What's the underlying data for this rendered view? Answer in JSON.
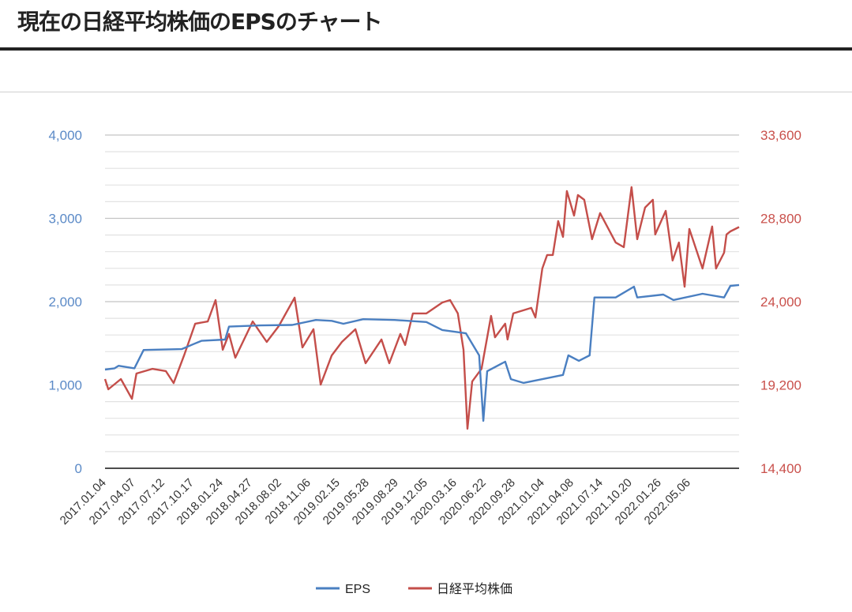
{
  "header": {
    "title": "現在の日経平均株価のEPSのチャート"
  },
  "chart_data": {
    "type": "line",
    "title": "",
    "grid": true,
    "legend_position": "bottom",
    "x_range": [
      "2017-01-04",
      "2022-10-22"
    ],
    "x_tick_labels": [
      "2017.01.04",
      "2017.04.07",
      "2017.07.12",
      "2017.10.17",
      "2018.01.24",
      "2018.04.27",
      "2018.08.02",
      "2018.11.06",
      "2019.02.15",
      "2019.05.28",
      "2019.08.29",
      "2019.12.05",
      "2020.03.16",
      "2020.06.22",
      "2020.09.28",
      "2021.01.04",
      "2021.04.08",
      "2021.07.14",
      "2021.10.20",
      "2022.01.26",
      "2022.05.06"
    ],
    "y_left": {
      "range": [
        0,
        4000
      ],
      "ticks": [
        "0",
        "1,000",
        "2,000",
        "3,000",
        "4,000"
      ],
      "color": "#5b8ac7",
      "minor_step": 200
    },
    "y_right": {
      "range": [
        14400,
        33600
      ],
      "ticks": [
        "14,400",
        "19,200",
        "24,000",
        "28,800",
        "33,600"
      ],
      "color": "#c9504b"
    },
    "series": [
      {
        "name": "EPS",
        "axis": "left",
        "color": "#4a7fc1",
        "points": [
          [
            "2017-01-04",
            1185
          ],
          [
            "2017-02-05",
            1200
          ],
          [
            "2017-02-18",
            1230
          ],
          [
            "2017-04-12",
            1200
          ],
          [
            "2017-05-08",
            1385
          ],
          [
            "2017-05-13",
            1420
          ],
          [
            "2017-09-17",
            1430
          ],
          [
            "2017-10-26",
            1490
          ],
          [
            "2017-11-22",
            1530
          ],
          [
            "2018-02-09",
            1545
          ],
          [
            "2018-02-22",
            1700
          ],
          [
            "2018-06-07",
            1715
          ],
          [
            "2018-09-21",
            1720
          ],
          [
            "2018-12-09",
            1780
          ],
          [
            "2019-01-31",
            1770
          ],
          [
            "2019-03-11",
            1735
          ],
          [
            "2019-05-16",
            1790
          ],
          [
            "2019-08-29",
            1780
          ],
          [
            "2019-12-13",
            1755
          ],
          [
            "2020-02-04",
            1660
          ],
          [
            "2020-04-23",
            1620
          ],
          [
            "2020-06-06",
            1355
          ],
          [
            "2020-06-20",
            570
          ],
          [
            "2020-07-03",
            1165
          ],
          [
            "2020-09-01",
            1280
          ],
          [
            "2020-09-20",
            1070
          ],
          [
            "2020-11-01",
            1025
          ],
          [
            "2021-03-13",
            1120
          ],
          [
            "2021-03-31",
            1355
          ],
          [
            "2021-05-05",
            1290
          ],
          [
            "2021-06-10",
            1355
          ],
          [
            "2021-06-26",
            2050
          ],
          [
            "2021-09-05",
            2050
          ],
          [
            "2021-11-05",
            2180
          ],
          [
            "2021-11-16",
            2050
          ],
          [
            "2022-02-11",
            2085
          ],
          [
            "2022-03-17",
            2020
          ],
          [
            "2022-06-22",
            2095
          ],
          [
            "2022-09-02",
            2050
          ],
          [
            "2022-09-23",
            2190
          ],
          [
            "2022-10-22",
            2200
          ]
        ]
      },
      {
        "name": "日経平均株価",
        "axis": "right",
        "color": "#c44e4a",
        "points": [
          [
            "2017-01-04",
            19540
          ],
          [
            "2017-01-15",
            18950
          ],
          [
            "2017-02-26",
            19540
          ],
          [
            "2017-04-04",
            18400
          ],
          [
            "2017-04-19",
            19860
          ],
          [
            "2017-06-11",
            20130
          ],
          [
            "2017-07-26",
            20000
          ],
          [
            "2017-08-21",
            19310
          ],
          [
            "2017-09-25",
            20900
          ],
          [
            "2017-11-01",
            22730
          ],
          [
            "2017-12-13",
            22860
          ],
          [
            "2018-01-08",
            24090
          ],
          [
            "2018-02-01",
            21230
          ],
          [
            "2018-02-22",
            22140
          ],
          [
            "2018-03-15",
            20770
          ],
          [
            "2018-05-12",
            22860
          ],
          [
            "2018-06-28",
            21680
          ],
          [
            "2018-08-07",
            22590
          ],
          [
            "2018-09-29",
            24230
          ],
          [
            "2018-10-25",
            21360
          ],
          [
            "2018-12-01",
            22410
          ],
          [
            "2018-12-25",
            19220
          ],
          [
            "2019-01-31",
            20900
          ],
          [
            "2019-03-06",
            21680
          ],
          [
            "2019-04-20",
            22410
          ],
          [
            "2019-05-24",
            20450
          ],
          [
            "2019-07-16",
            21820
          ],
          [
            "2019-08-11",
            20450
          ],
          [
            "2019-09-17",
            22140
          ],
          [
            "2019-10-03",
            21500
          ],
          [
            "2019-10-29",
            23320
          ],
          [
            "2019-12-13",
            23320
          ],
          [
            "2020-02-04",
            23950
          ],
          [
            "2020-03-01",
            24090
          ],
          [
            "2020-03-27",
            23320
          ],
          [
            "2020-04-15",
            21230
          ],
          [
            "2020-04-28",
            16680
          ],
          [
            "2020-05-14",
            19400
          ],
          [
            "2020-06-14",
            20130
          ],
          [
            "2020-07-16",
            23180
          ],
          [
            "2020-07-29",
            21950
          ],
          [
            "2020-09-01",
            22730
          ],
          [
            "2020-09-09",
            21820
          ],
          [
            "2020-09-28",
            23320
          ],
          [
            "2020-11-27",
            23640
          ],
          [
            "2020-12-11",
            23090
          ],
          [
            "2021-01-03",
            25910
          ],
          [
            "2021-01-19",
            26690
          ],
          [
            "2021-02-07",
            26690
          ],
          [
            "2021-02-25",
            28640
          ],
          [
            "2021-03-13",
            27730
          ],
          [
            "2021-03-26",
            30370
          ],
          [
            "2021-04-19",
            28960
          ],
          [
            "2021-05-02",
            30140
          ],
          [
            "2021-05-23",
            29870
          ],
          [
            "2021-06-18",
            27600
          ],
          [
            "2021-07-15",
            29100
          ],
          [
            "2021-09-05",
            27410
          ],
          [
            "2021-10-02",
            27140
          ],
          [
            "2021-10-28",
            30600
          ],
          [
            "2021-11-16",
            27600
          ],
          [
            "2021-12-12",
            29420
          ],
          [
            "2022-01-07",
            29870
          ],
          [
            "2022-01-15",
            27870
          ],
          [
            "2022-02-19",
            29230
          ],
          [
            "2022-03-14",
            26370
          ],
          [
            "2022-04-04",
            27410
          ],
          [
            "2022-04-23",
            24860
          ],
          [
            "2022-05-09",
            28190
          ],
          [
            "2022-06-22",
            25910
          ],
          [
            "2022-07-24",
            28330
          ],
          [
            "2022-08-06",
            25910
          ],
          [
            "2022-09-02",
            26820
          ],
          [
            "2022-09-10",
            27870
          ],
          [
            "2022-09-23",
            28050
          ],
          [
            "2022-10-22",
            28300
          ]
        ]
      }
    ]
  }
}
